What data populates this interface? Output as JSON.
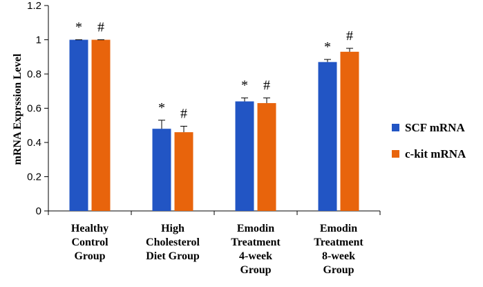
{
  "chart_data": {
    "type": "bar",
    "title": "",
    "xlabel": "",
    "ylabel": "mRNA Exprssion Level",
    "ylim": [
      0,
      1.2
    ],
    "yticks": [
      0,
      0.2,
      0.4,
      0.6,
      0.8,
      1,
      1.2
    ],
    "ytick_labels": [
      "0",
      "0.2",
      "0.4",
      "0.6",
      "0.8",
      "1",
      "1.2"
    ],
    "grid": false,
    "legend_position": "right",
    "categories": [
      [
        "Healthy",
        "Control",
        "Group"
      ],
      [
        "High",
        "Cholesterol",
        "Diet Group"
      ],
      [
        "Emodin",
        "Treatment",
        "4-week",
        "Group"
      ],
      [
        "Emodin",
        "Treatment",
        "8-week",
        "Group"
      ]
    ],
    "series": [
      {
        "name": "SCF mRNA",
        "color": "#2255c4",
        "values": [
          1.0,
          0.48,
          0.64,
          0.87
        ],
        "errors": [
          0.0,
          0.05,
          0.02,
          0.015
        ],
        "annotations": [
          "*",
          "*",
          "*",
          "*"
        ]
      },
      {
        "name": "c-kit mRNA",
        "color": "#e8640c",
        "values": [
          1.0,
          0.46,
          0.63,
          0.93
        ],
        "errors": [
          0.0,
          0.035,
          0.03,
          0.02
        ],
        "annotations": [
          "#",
          "#",
          "#",
          "#"
        ]
      }
    ]
  }
}
